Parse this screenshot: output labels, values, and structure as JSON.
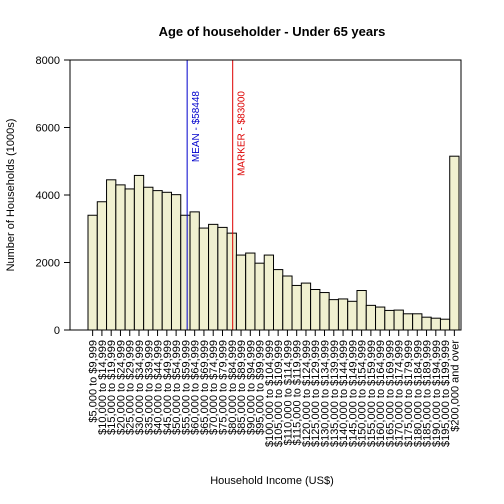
{
  "chart_data": {
    "type": "bar",
    "title": "Age of householder - Under 65 years",
    "xlabel": "Household Income (US$)",
    "ylabel": "Number of Households (1000s)",
    "ylim": [
      0,
      8000
    ],
    "yticks": [
      0,
      2000,
      4000,
      6000,
      8000
    ],
    "bar_color": "#f0f0d0",
    "grid": false,
    "categories": [
      "$5,000 to $9,999",
      "$10,000 to $14,999",
      "$15,000 to $19,999",
      "$20,000 to $24,999",
      "$25,000 to $29,999",
      "$30,000 to $34,999",
      "$35,000 to $39,999",
      "$40,000 to $44,999",
      "$45,000 to $49,999",
      "$50,000 to $54,999",
      "$55,000 to $59,999",
      "$60,000 to $64,999",
      "$65,000 to $69,999",
      "$70,000 to $74,999",
      "$75,000 to $79,999",
      "$80,000 to $84,999",
      "$85,000 to $89,999",
      "$90,000 to $94,999",
      "$95,000 to $99,999",
      "$100,000 to $104,999",
      "$105,000 to $109,999",
      "$110,000 to $114,999",
      "$115,000 to $119,999",
      "$120,000 to $124,999",
      "$125,000 to $129,999",
      "$130,000 to $134,999",
      "$135,000 to $139,999",
      "$140,000 to $144,999",
      "$145,000 to $149,999",
      "$150,000 to $154,999",
      "$155,000 to $159,999",
      "$160,000 to $164,999",
      "$165,000 to $169,999",
      "$170,000 to $174,999",
      "$175,000 to $179,999",
      "$180,000 to $184,999",
      "$185,000 to $189,999",
      "$190,000 to $194,999",
      "$195,000 to $199,999",
      "$200,000 and over"
    ],
    "shown_tick_labels": [
      "$5,000 to $9,999",
      "$10,000 to $14,999",
      "$15,000 to $19,999",
      "$20,000 to $24,999",
      "$25,000 to $29,999",
      "$30,000 to $34,999",
      "$35,000 to $39,999",
      "$40,000 to $44,999",
      "$45,000 to $49,999",
      "$50,000 to $54,999",
      "$55,000 to $59,999",
      "$60,000 to $64,999",
      "$65,000 to $69,999",
      "$70,000 to $74,999",
      "$75,000 to $79,999",
      "$80,000 to $84,999",
      "$85,000 to $89,999",
      "$90,000 to $94,999",
      "$95,000 to $99,999",
      "$100,000 to $104,999",
      "$105,000 to $109,999",
      "$110,000 to $114,999",
      "$115,000 to $119,999",
      "$120,000 to $124,999",
      "$125,000 to $129,999",
      "$130,000 to $134,999",
      "$135,000 to $139,999",
      "$140,000 to $144,999",
      "$145,000 to $149,999",
      "$150,000 to $154,999",
      "$155,000 to $159,999",
      "$160,000 to $164,999",
      "$165,000 to $169,999",
      "$170,000 to $174,999",
      "$175,000 to $179,999",
      "$180,000 to $184,999",
      "$185,000 to $189,999",
      "$190,000 to $194,999",
      "$195,000 to $199,999",
      "$200,000 and over"
    ],
    "values": [
      3400,
      3800,
      4450,
      4300,
      4180,
      4580,
      4230,
      4130,
      4080,
      4010,
      3400,
      3500,
      3020,
      3130,
      3040,
      2870,
      2220,
      2280,
      1980,
      2220,
      1790,
      1600,
      1320,
      1390,
      1200,
      1110,
      900,
      920,
      850,
      1170,
      730,
      680,
      580,
      590,
      480,
      480,
      380,
      350,
      320,
      5150
    ],
    "reference_lines": [
      {
        "label": "MEAN - $58448",
        "x_value": 58448,
        "color": "#0000cc"
      },
      {
        "label": "MARKER - $83000",
        "x_value": 83000,
        "color": "#dd0000"
      }
    ],
    "first_bin_lower": 5000,
    "bin_width": 5000
  }
}
